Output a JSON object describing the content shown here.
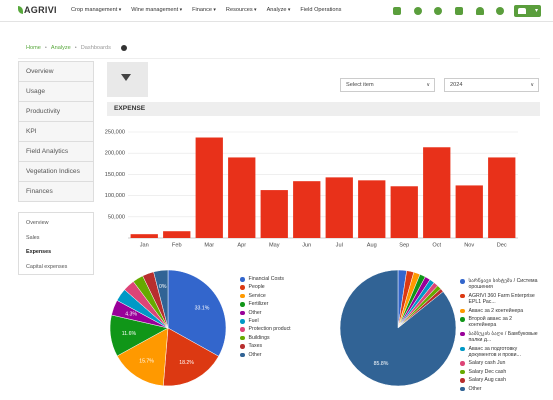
{
  "header": {
    "logo": "AGRIVI",
    "menu": [
      "Crop management",
      "Wine management",
      "Finance",
      "Resources",
      "Analyze",
      "Field Operations"
    ]
  },
  "breadcrumb": [
    "Home",
    "Analyze",
    "Dashboards"
  ],
  "sidebar": {
    "items": [
      "Overview",
      "Usage",
      "Productivity",
      "KPI",
      "Field Analytics",
      "Vegetation Indices",
      "Finances"
    ],
    "subitems": [
      "Overview",
      "Sales",
      "Expenses",
      "Capital expenses"
    ]
  },
  "filters": {
    "item": "Select item",
    "year": "2024"
  },
  "section": "EXPENSE",
  "chart_data": [
    {
      "type": "bar",
      "categories": [
        "Jan",
        "Feb",
        "Mar",
        "Apr",
        "May",
        "Jun",
        "Jul",
        "Aug",
        "Sep",
        "Oct",
        "Nov",
        "Dec"
      ],
      "values": [
        9000,
        16000,
        237000,
        190000,
        113000,
        134000,
        143000,
        136000,
        122000,
        214000,
        124000,
        190000
      ],
      "color": "#e8311a",
      "ylim": [
        0,
        250000
      ],
      "yticks": [
        {
          "value": 50000,
          "label": "50,000"
        },
        {
          "value": 100000,
          "label": "100,000"
        },
        {
          "value": 150000,
          "label": "150,000"
        },
        {
          "value": 200000,
          "label": "200,000"
        },
        {
          "value": 250000,
          "label": "250,000"
        }
      ],
      "grid": true
    },
    {
      "type": "pie",
      "categories": [
        "Financial Costs",
        "People",
        "Service",
        "Fertilizer",
        "Other",
        "Fuel",
        "Protection product",
        "Buildings",
        "Taxes",
        "Other"
      ],
      "values": [
        33.1,
        18.2,
        15.7,
        11.6,
        4.3,
        3.6,
        3.3,
        3.0,
        3.2,
        4.0
      ],
      "value_labels": [
        "33.1%",
        "18.2%",
        "15.7%",
        "11.6%",
        "4.3%",
        null,
        null,
        null,
        null,
        null
      ],
      "annotations": [
        "0%"
      ],
      "colors": [
        "#3366cc",
        "#dc3912",
        "#ff9900",
        "#109618",
        "#990099",
        "#0099c6",
        "#dd4477",
        "#66aa00",
        "#b82e2e",
        "#316395"
      ]
    },
    {
      "type": "pie",
      "categories": [
        "სარწყავი სისტემა / Система орошения",
        "AGRIVI 360 Farm Enterprise EPL1 Рас...",
        "Аванс за 2 контейнера",
        "Второй аванс за 2 контейнера",
        "ბამბუკის ბაღი / Бамбуковые палки д...",
        "Аванс за подготовку документов и прови...",
        "Salary cash Jun",
        "Salary Dec cash",
        "Salary Aug cash",
        "Other"
      ],
      "values": [
        2.4,
        2.0,
        1.8,
        1.6,
        1.5,
        1.4,
        1.3,
        1.2,
        1.0,
        85.8
      ],
      "value_labels": [
        null,
        null,
        null,
        null,
        null,
        null,
        null,
        null,
        null,
        "85.8%"
      ],
      "colors": [
        "#3366cc",
        "#dc3912",
        "#ff9900",
        "#109618",
        "#990099",
        "#0099c6",
        "#dd4477",
        "#66aa00",
        "#b82e2e",
        "#316395"
      ]
    }
  ]
}
